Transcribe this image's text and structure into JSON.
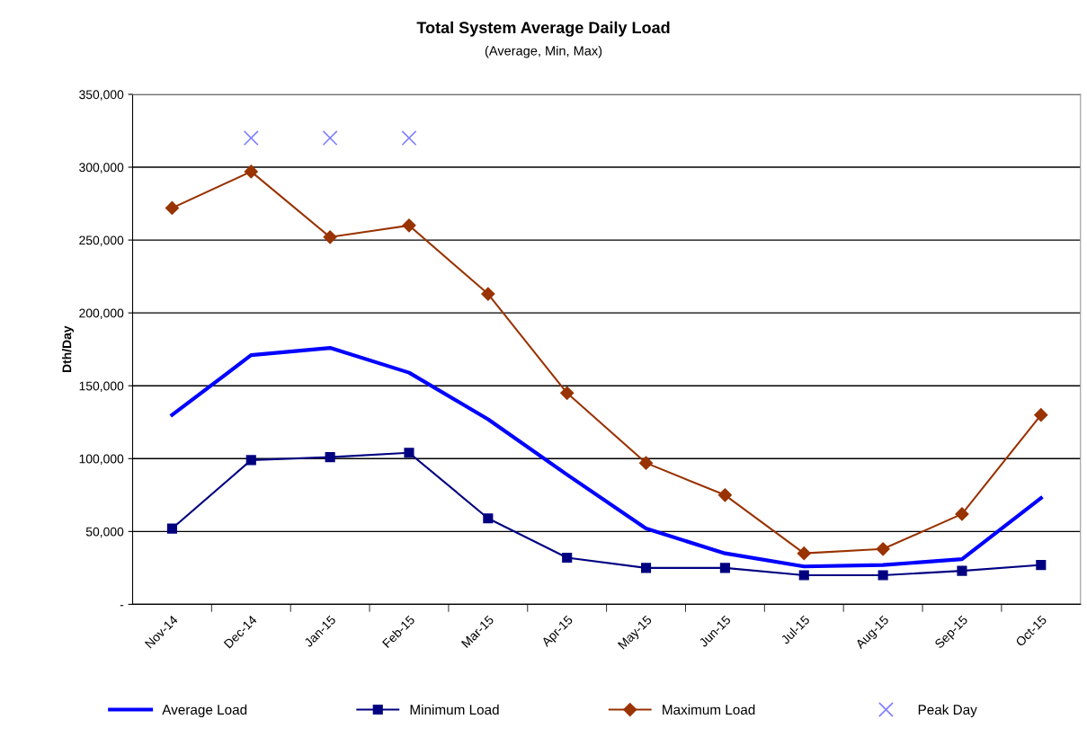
{
  "chart_data": {
    "type": "line",
    "title": "Total System Average Daily Load",
    "subtitle": "(Average, Min, Max)",
    "ylabel": "Dth/Day",
    "categories": [
      "Nov-14",
      "Dec-14",
      "Jan-15",
      "Feb-15",
      "Mar-15",
      "Apr-15",
      "May-15",
      "Jun-15",
      "Jul-15",
      "Aug-15",
      "Sep-15",
      "Oct-15"
    ],
    "series": [
      {
        "name": "Average Load",
        "color": "#0000ff",
        "marker": "none",
        "values": [
          130000,
          171000,
          176000,
          159000,
          127000,
          89000,
          52000,
          35000,
          26000,
          27000,
          31000,
          73000
        ]
      },
      {
        "name": "Minimum Load",
        "color": "#000080",
        "marker": "square",
        "values": [
          52000,
          99000,
          101000,
          104000,
          59000,
          32000,
          25000,
          25000,
          20000,
          20000,
          23000,
          27000
        ]
      },
      {
        "name": "Maximum Load",
        "color": "#993300",
        "marker": "diamond",
        "values": [
          272000,
          297000,
          252000,
          260000,
          213000,
          145000,
          97000,
          75000,
          35000,
          38000,
          62000,
          130000
        ]
      },
      {
        "name": "Peak Day",
        "type": "scatter",
        "color": "#8080ff",
        "marker": "cross",
        "values": [
          null,
          320000,
          320000,
          320000,
          null,
          null,
          null,
          null,
          null,
          null,
          null,
          null
        ]
      }
    ],
    "ylim": [
      0,
      350000
    ],
    "yticks": [
      {
        "value": 0,
        "label": "-"
      },
      {
        "value": 50000,
        "label": "50,000"
      },
      {
        "value": 100000,
        "label": "100,000"
      },
      {
        "value": 150000,
        "label": "150,000"
      },
      {
        "value": 200000,
        "label": "200,000"
      },
      {
        "value": 250000,
        "label": "250,000"
      },
      {
        "value": 300000,
        "label": "300,000"
      },
      {
        "value": 350000,
        "label": "350,000"
      }
    ],
    "grid": "y",
    "legend": "bottom"
  }
}
